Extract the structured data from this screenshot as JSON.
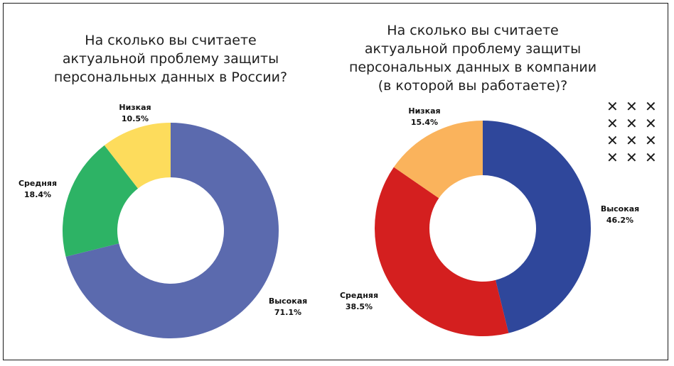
{
  "chart_data": [
    {
      "type": "pie",
      "donut": true,
      "title": "На сколько вы считаете актуальной проблему защиты персональных данных в России?",
      "title_lines": [
        "На сколько вы считаете",
        "актуальной проблему защиты",
        "персональных данных в России?"
      ],
      "categories": [
        "Высокая",
        "Средняя",
        "Низкая"
      ],
      "values": [
        71.1,
        18.4,
        10.5
      ],
      "value_labels": [
        "71.1%",
        "18.4%",
        "10.5%"
      ],
      "colors": [
        "#5b6aae",
        "#2db365",
        "#fddc5c"
      ]
    },
    {
      "type": "pie",
      "donut": true,
      "title": "На сколько вы считаете актуальной проблему защиты персональных данных в компании (в которой вы работаете)?",
      "title_lines": [
        "На сколько вы считаете",
        "актуальной проблему защиты",
        "персональных данных в компании",
        "(в которой вы работаете)?"
      ],
      "categories": [
        "Высокая",
        "Средняя",
        "Низкая"
      ],
      "values": [
        46.2,
        38.5,
        15.4
      ],
      "value_labels": [
        "46.2%",
        "38.5%",
        "15.4%"
      ],
      "colors": [
        "#2f479b",
        "#d41f1f",
        "#fab35c"
      ]
    }
  ],
  "decoration": {
    "glyph": "✕",
    "icon": "cross-pattern-icon",
    "rows": 4,
    "cols": 3
  }
}
